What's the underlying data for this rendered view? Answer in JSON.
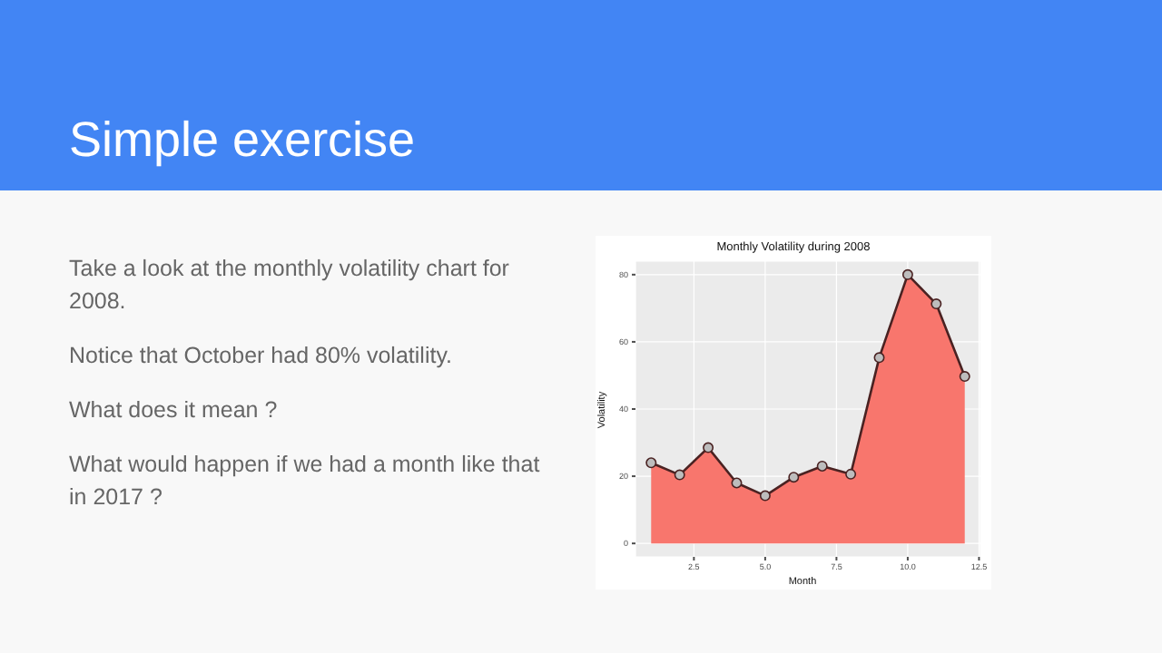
{
  "chart_data": {
    "type": "area",
    "title": "Monthly Volatility during 2008",
    "xlabel": "Month",
    "ylabel": "Volatility",
    "annotations": [
      "Simple exercise",
      "Take a look at the monthly volatility chart for 2008.",
      "Notice that October had 80% volatility.",
      "What does it mean ?",
      "What would happen if we had a month like that in 2017 ?"
    ],
    "x": [
      1,
      2,
      3,
      4,
      5,
      6,
      7,
      8,
      9,
      10,
      11,
      12
    ],
    "series": [
      {
        "color": "#f8766d",
        "values": [
          24,
          20.4,
          28.5,
          18,
          14.2,
          19.7,
          23,
          20.6,
          55.3,
          80,
          71.3,
          49.7
        ]
      }
    ],
    "xlim": [
      0.45,
      12.55
    ],
    "xticks": [
      {
        "value": 2.5,
        "label": "2.5"
      },
      {
        "value": 5,
        "label": "5.0"
      },
      {
        "value": 7.5,
        "label": "7.5"
      },
      {
        "value": 10,
        "label": "10.0"
      },
      {
        "value": 12.5,
        "label": "12.5"
      }
    ],
    "ylim": [
      -4,
      84
    ],
    "yticks": [
      0,
      20,
      40,
      60,
      80
    ],
    "grid": true,
    "marker": "circle"
  }
}
